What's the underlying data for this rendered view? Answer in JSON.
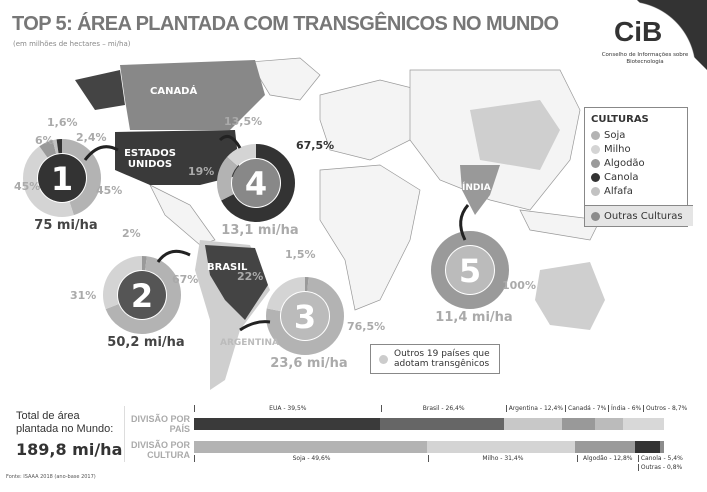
{
  "header": {
    "title": "TOP 5: ÁREA PLANTADA COM TRANSGÊNICOS NO MUNDO",
    "subtitle": "(em milhões de hectares – mi/ha)"
  },
  "logo": {
    "text": "CiB",
    "subtitle": "Conselho de Informações sobre Biotecnologia"
  },
  "colors": {
    "Soja": "#b3b3b3",
    "Milho": "#d4d4d4",
    "Algodão": "#9a9a9a",
    "Canola": "#333333",
    "Alfafa": "#c2c2c2",
    "Outras Culturas": "#8c8c8c"
  },
  "map_labels": {
    "canada": "CANADÁ",
    "usa": "ESTADOS UNIDOS",
    "brasil": "BRASIL",
    "argentina": "ARGENTINA",
    "india": "ÍNDIA"
  },
  "ranking": [
    {
      "rank": "1",
      "country": "Estados Unidos",
      "area": "75 mi/ha",
      "slices": [
        {
          "crop": "Soja",
          "pct": 45,
          "label": "45%"
        },
        {
          "crop": "Milho",
          "pct": 45,
          "label": "45%"
        },
        {
          "crop": "Algodão",
          "pct": 6,
          "label": "6%"
        },
        {
          "crop": "Alfafa",
          "pct": 1.6,
          "label": "1,6%"
        },
        {
          "crop": "Canola",
          "pct": 2.4,
          "label": "2,4%"
        }
      ]
    },
    {
      "rank": "2",
      "country": "Brasil",
      "area": "50,2 mi/ha",
      "slices": [
        {
          "crop": "Algodão",
          "pct": 2,
          "label": "2%"
        },
        {
          "crop": "Soja",
          "pct": 67,
          "label": "67%"
        },
        {
          "crop": "Milho",
          "pct": 31,
          "label": "31%"
        }
      ]
    },
    {
      "rank": "3",
      "country": "Argentina",
      "area": "23,6 mi/ha",
      "slices": [
        {
          "crop": "Algodão",
          "pct": 1.5,
          "label": "1,5%"
        },
        {
          "crop": "Soja",
          "pct": 76.5,
          "label": "76,5%"
        },
        {
          "crop": "Milho",
          "pct": 22,
          "label": "22%"
        }
      ]
    },
    {
      "rank": "4",
      "country": "Canadá",
      "area": "13,1 mi/ha",
      "slices": [
        {
          "crop": "Canola",
          "pct": 67.5,
          "label": "67,5%"
        },
        {
          "crop": "Soja",
          "pct": 19,
          "label": "19%"
        },
        {
          "crop": "Milho",
          "pct": 13.5,
          "label": "13,5%"
        }
      ]
    },
    {
      "rank": "5",
      "country": "Índia",
      "area": "11,4 mi/ha",
      "slices": [
        {
          "crop": "Algodão",
          "pct": 100,
          "label": "100%"
        }
      ]
    }
  ],
  "legend": {
    "title": "CULTURAS",
    "items": [
      "Soja",
      "Milho",
      "Algodão",
      "Canola",
      "Alfafa"
    ],
    "other": "Outras Culturas"
  },
  "others_box": "Outros 19 países que adotam transgênicos",
  "totals": {
    "label": "Total de área plantada no Mundo:",
    "value": "189,8 mi/ha"
  },
  "by_country": {
    "label": "DIVISÃO POR PAÍS",
    "segments": [
      {
        "name": "EUA",
        "pct": 39.5,
        "label": "EUA - 39,5%",
        "color": "#3a3a3a"
      },
      {
        "name": "Brasil",
        "pct": 26.4,
        "label": "Brasil - 26,4%",
        "color": "#666666"
      },
      {
        "name": "Argentina",
        "pct": 12.4,
        "label": "Argentina - 12,4%",
        "color": "#c8c8c8"
      },
      {
        "name": "Canadá",
        "pct": 7,
        "label": "Canadá - 7%",
        "color": "#999999"
      },
      {
        "name": "Índia",
        "pct": 6,
        "label": "Índia - 6%",
        "color": "#bbbbbb"
      },
      {
        "name": "Outros",
        "pct": 8.7,
        "label": "Outros - 8,7%",
        "color": "#d8d8d8"
      }
    ]
  },
  "by_crop": {
    "label": "DIVISÃO POR CULTURA",
    "segments": [
      {
        "name": "Soja",
        "pct": 49.6,
        "label": "Soja - 49,6%",
        "color": "#b3b3b3"
      },
      {
        "name": "Milho",
        "pct": 31.4,
        "label": "Milho - 31,4%",
        "color": "#d4d4d4"
      },
      {
        "name": "Algodão",
        "pct": 12.8,
        "label": "Algodão - 12,8%",
        "color": "#9a9a9a"
      },
      {
        "name": "Canola",
        "pct": 5.4,
        "label": "Canola - 5,4%",
        "color": "#333333"
      },
      {
        "name": "Outras",
        "pct": 0.8,
        "label": "Outras - 0,8%",
        "color": "#8c8c8c"
      }
    ]
  },
  "source": "Fonte: ISAAA 2018 (ano-base 2017)"
}
